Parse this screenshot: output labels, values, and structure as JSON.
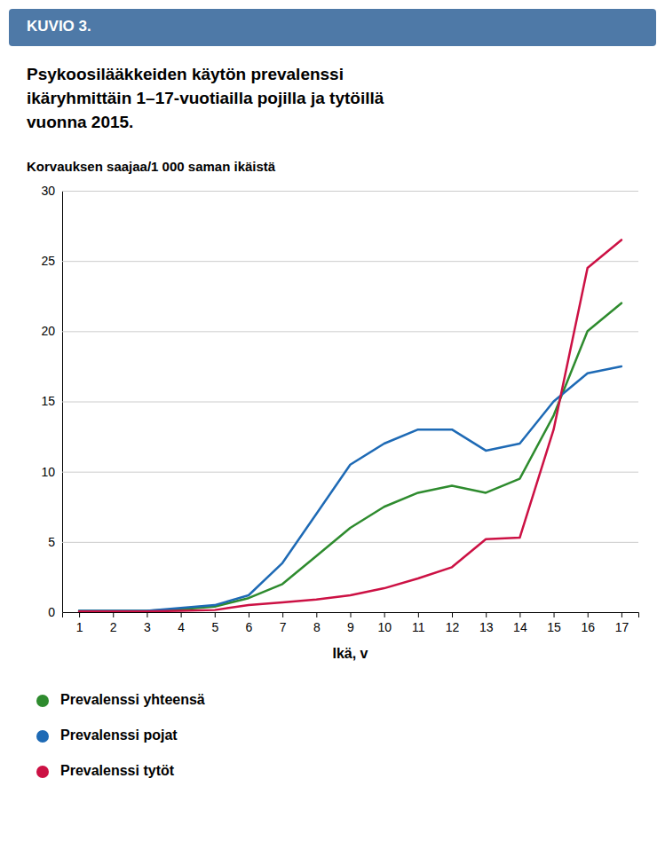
{
  "chart_data": {
    "type": "line",
    "annotations": [
      "KUVIO 3."
    ],
    "title": "Psykoosilääkkeiden käytön prevalenssi\nikäryhmittäin 1–17-vuotiailla pojilla ja tytöillä\nvuonna 2015.",
    "y_label": "Korvauksen saajaa/1 000 saman ikäistä",
    "x_label": "Ikä, v",
    "x": [
      1,
      2,
      3,
      4,
      5,
      6,
      7,
      8,
      9,
      10,
      11,
      12,
      13,
      14,
      15,
      16,
      17
    ],
    "series": [
      {
        "name": "Prevalenssi yhteensä",
        "color": "#2e8b2e",
        "values": [
          0.1,
          0.1,
          0.1,
          0.2,
          0.4,
          1.0,
          2.0,
          4.0,
          6.0,
          7.5,
          8.5,
          9.0,
          8.5,
          9.5,
          14.0,
          20.0,
          22.0
        ]
      },
      {
        "name": "Prevalenssi pojat",
        "color": "#1e6ab5",
        "values": [
          0.1,
          0.1,
          0.1,
          0.3,
          0.5,
          1.2,
          3.5,
          7.0,
          10.5,
          12.0,
          13.0,
          13.0,
          11.5,
          12.0,
          15.0,
          17.0,
          17.5
        ]
      },
      {
        "name": "Prevalenssi tytöt",
        "color": "#cc1144",
        "values": [
          0.05,
          0.05,
          0.05,
          0.1,
          0.15,
          0.5,
          0.7,
          0.9,
          1.2,
          1.7,
          2.4,
          3.2,
          5.2,
          5.3,
          13.0,
          24.5,
          26.5
        ]
      }
    ],
    "xlim": [
      0.5,
      17.5
    ],
    "xticks": [
      1,
      2,
      3,
      4,
      5,
      6,
      7,
      8,
      9,
      10,
      11,
      12,
      13,
      14,
      15,
      16,
      17
    ],
    "ylim": [
      0,
      30
    ],
    "yticks": [
      0,
      5,
      10,
      15,
      20,
      25,
      30
    ],
    "grid": true,
    "legend": "bottom"
  }
}
